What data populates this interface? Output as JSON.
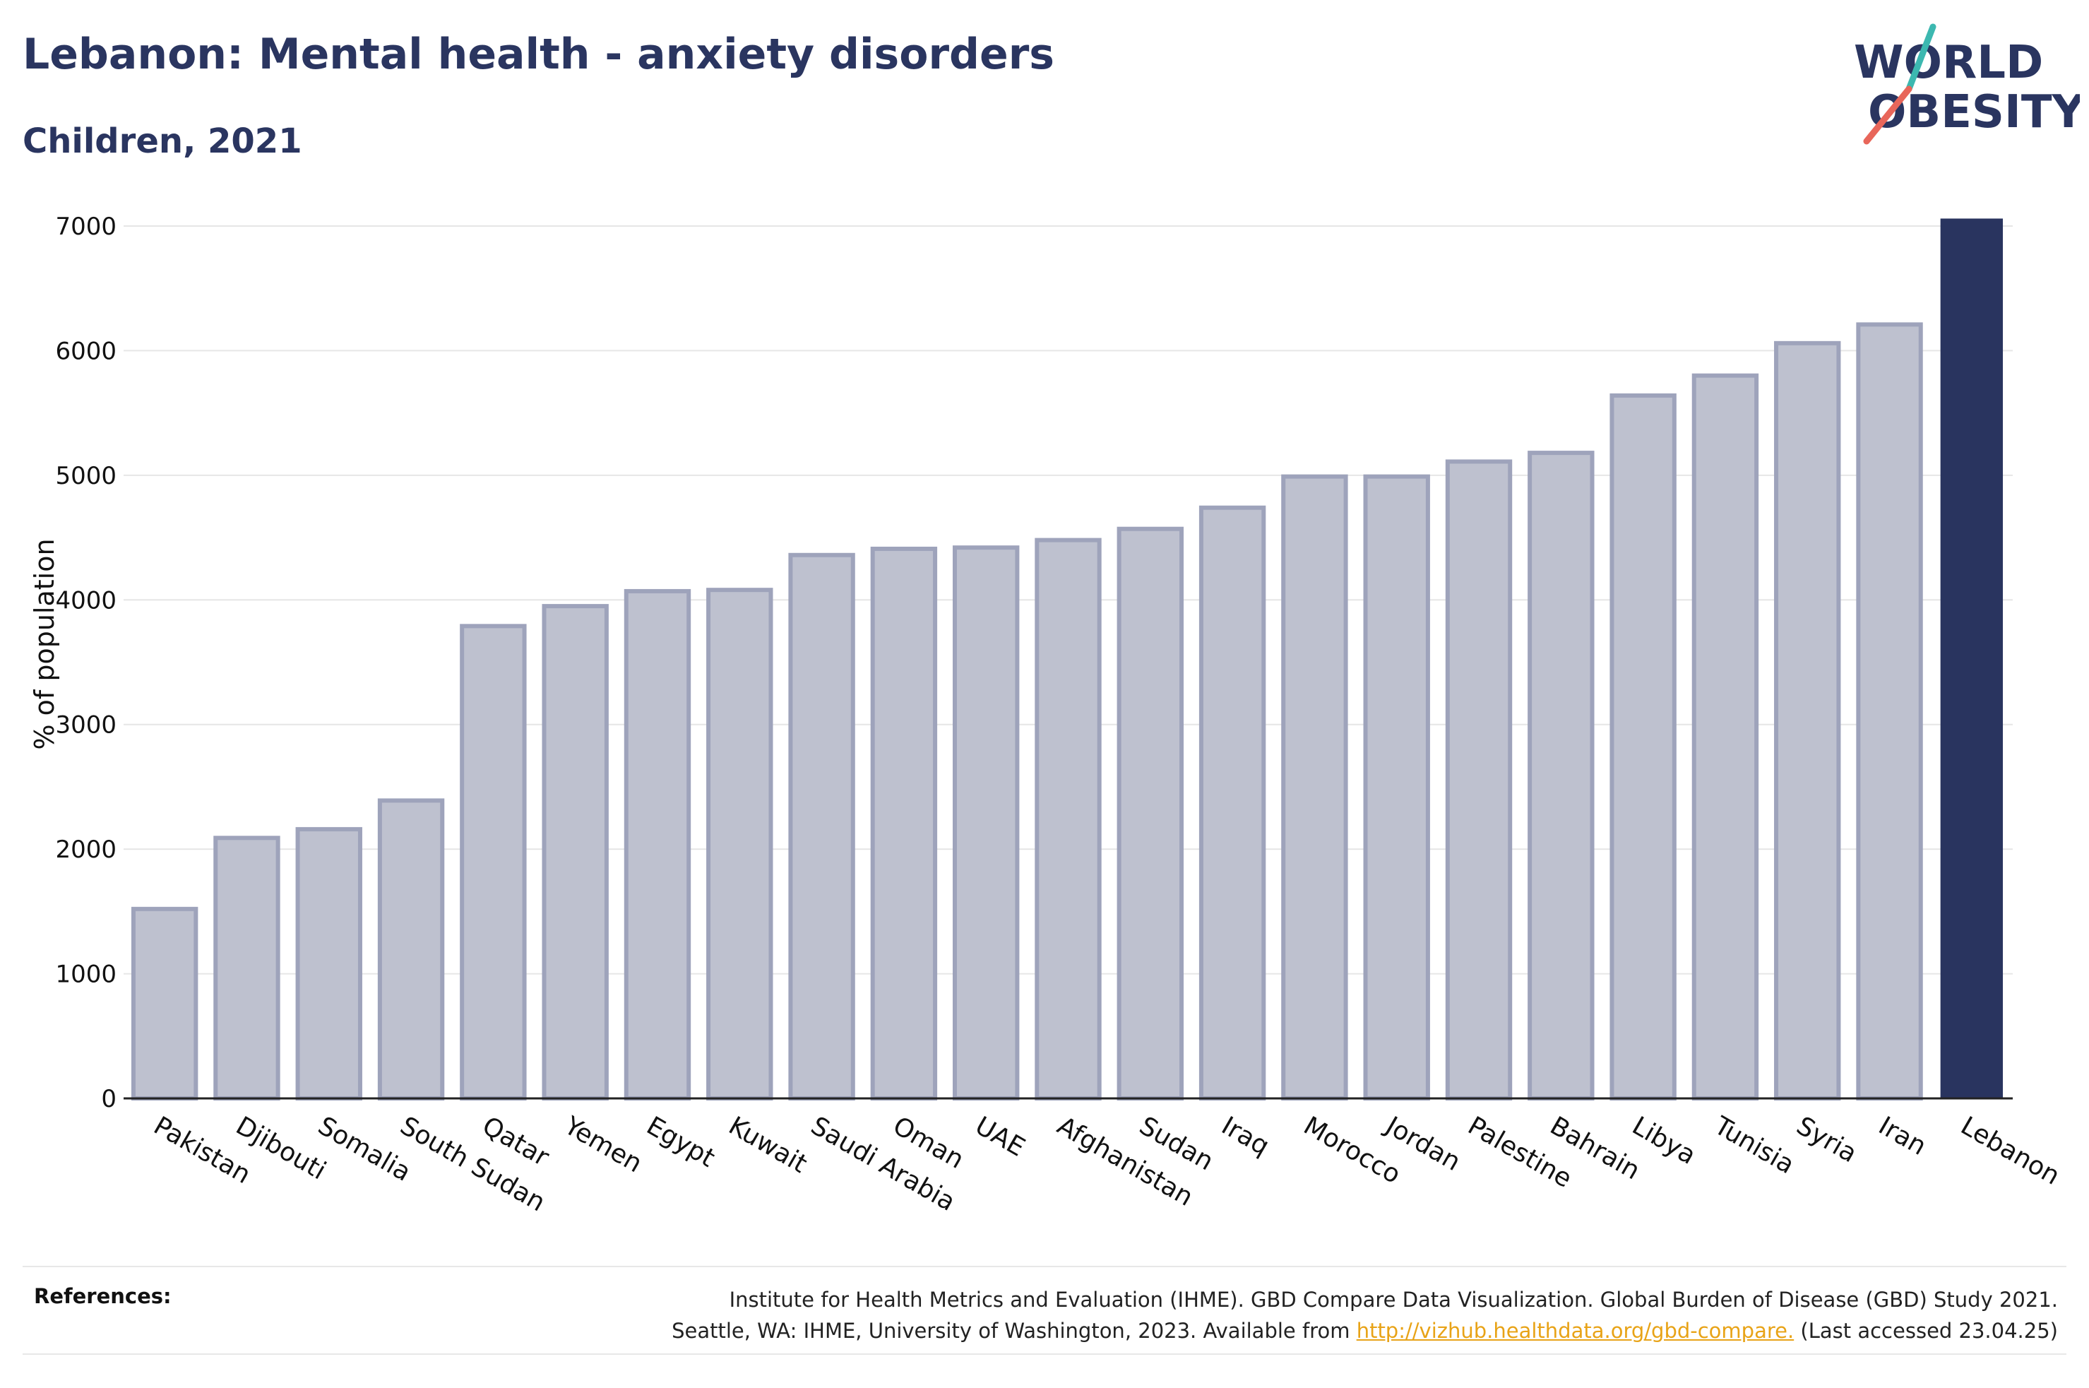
{
  "header": {
    "title": "Lebanon: Mental health - anxiety disorders",
    "subtitle": "Children, 2021"
  },
  "logo": {
    "line1": "WORLD",
    "line2": "OBESITY",
    "accent_colors": [
      "#3cb8b0",
      "#e8665a"
    ]
  },
  "chart_data": {
    "type": "bar",
    "ylabel": "% of population",
    "xlabel": "",
    "ylim": [
      0,
      7000
    ],
    "yticks": [
      0,
      1000,
      2000,
      3000,
      4000,
      5000,
      6000,
      7000
    ],
    "grid": true,
    "highlight": "Lebanon",
    "colors": {
      "bar_fill": "#bec1cf",
      "bar_stroke": "#9ea3bb",
      "highlight": "#29345f",
      "grid": "#e6e6e6"
    },
    "categories": [
      "Pakistan",
      "Djibouti",
      "Somalia",
      "South Sudan",
      "Qatar",
      "Yemen",
      "Egypt",
      "Kuwait",
      "Saudi Arabia",
      "Oman",
      "UAE",
      "Afghanistan",
      "Sudan",
      "Iraq",
      "Morocco",
      "Jordan",
      "Palestine",
      "Bahrain",
      "Libya",
      "Tunisia",
      "Syria",
      "Iran",
      "Lebanon"
    ],
    "values": [
      1520,
      2090,
      2160,
      2390,
      3790,
      3950,
      4070,
      4080,
      4360,
      4410,
      4420,
      4480,
      4570,
      4740,
      4990,
      4990,
      5110,
      5180,
      5640,
      5800,
      6060,
      6210,
      7060
    ]
  },
  "references": {
    "label": "References:",
    "line1": "Institute for Health Metrics and Evaluation (IHME). GBD Compare Data Visualization. Global Burden of Disease (GBD) Study 2021.",
    "line2_prefix": "Seattle, WA: IHME, University of Washington, 2023. Available from ",
    "link": "http://vizhub.healthdata.org/gbd-compare.",
    "line2_suffix": " (Last accessed 23.04.25)"
  }
}
